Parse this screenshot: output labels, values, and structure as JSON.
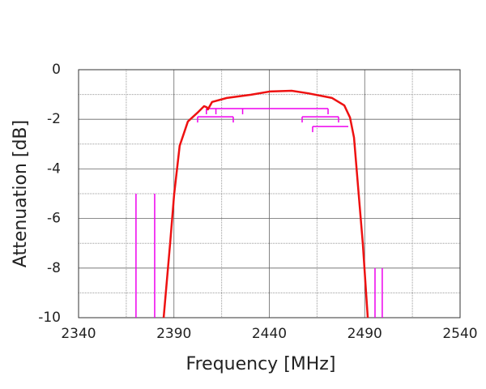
{
  "chart_data": {
    "type": "line",
    "xlabel": "Frequency [MHz]",
    "ylabel": "Attenuation [dB]",
    "xlim": [
      2340,
      2540
    ],
    "ylim": [
      -10,
      0
    ],
    "xticks": [
      2340,
      2390,
      2440,
      2490,
      2540
    ],
    "yticks": [
      0,
      -2,
      -4,
      -6,
      -8,
      -10
    ],
    "xminor": [
      2365,
      2415,
      2465,
      2515
    ],
    "yminor": [
      -1,
      -3,
      -5,
      -7,
      -9
    ],
    "grid": true,
    "series": [
      {
        "color": "#ee1111",
        "x": [
          2384.6,
          2388,
          2390.1,
          2393,
          2397.3,
          2402.8,
          2405.8,
          2407.3,
          2407.8,
          2410,
          2417.7,
          2430.4,
          2440.2,
          2451.7,
          2460.2,
          2472.9,
          2479.3,
          2482.3,
          2484.4,
          2486.5,
          2489,
          2491.6
        ],
        "values": [
          -10,
          -7,
          -5.03,
          -3.07,
          -2.09,
          -1.7,
          -1.47,
          -1.52,
          -1.6,
          -1.3,
          -1.14,
          -1.01,
          -0.88,
          -0.85,
          -0.95,
          -1.14,
          -1.44,
          -1.93,
          -2.74,
          -4.7,
          -7,
          -10
        ]
      }
    ],
    "marker_color": "#ee00ee",
    "channel_lines": [
      {
        "freq": 2370.1,
        "top": -5
      },
      {
        "freq": 2379.9,
        "top": -5
      },
      {
        "freq": 2495.4,
        "top": -8
      },
      {
        "freq": 2499.2,
        "top": -8
      }
    ],
    "brackets": [
      {
        "from": 2407,
        "to": 2470.8,
        "level": -1.57,
        "drops": [
          2407,
          2412,
          2426,
          2470.8
        ]
      },
      {
        "from": 2402.4,
        "to": 2421.1,
        "level": -1.9,
        "drops": [
          2402.4,
          2421.1
        ]
      },
      {
        "from": 2457.2,
        "to": 2476.3,
        "level": -1.9,
        "drops": [
          2457.2,
          2476.3
        ]
      },
      {
        "from": 2462.7,
        "to": 2481.4,
        "level": -2.29,
        "drops": [
          2462.7
        ]
      }
    ]
  }
}
